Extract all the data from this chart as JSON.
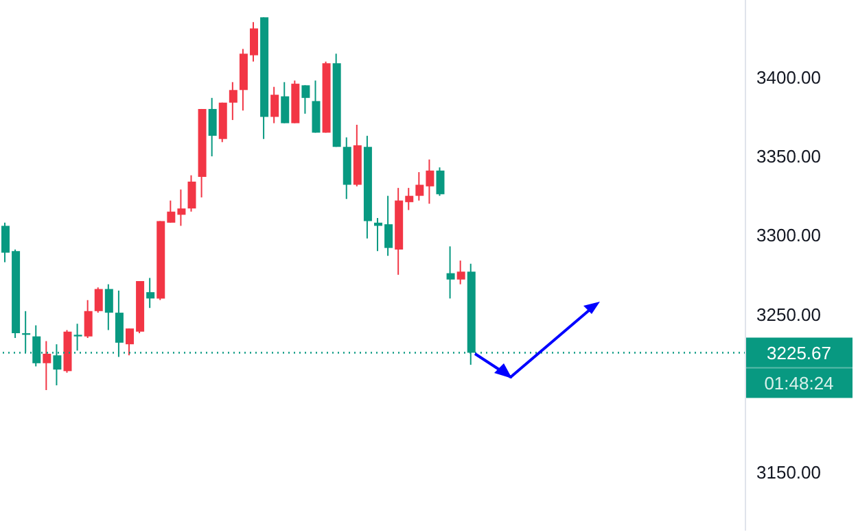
{
  "chart_data": {
    "type": "candlestick",
    "categories": [
      null,
      null,
      null,
      null,
      null,
      null,
      null,
      null,
      null,
      null,
      null,
      null,
      null,
      null,
      null,
      null,
      null,
      null,
      null,
      null,
      null,
      null,
      null,
      null,
      null,
      null,
      null,
      null,
      null,
      null,
      null,
      null,
      null,
      null,
      null,
      null,
      null,
      null,
      null,
      null,
      null,
      null,
      null,
      null,
      null,
      null,
      null,
      null,
      null,
      null,
      null,
      null,
      null,
      null,
      null,
      null,
      null,
      null,
      null,
      null,
      null,
      null,
      null,
      null,
      null,
      null,
      null,
      null,
      null,
      null,
      null,
      null
    ],
    "ohlc": [
      [
        3306,
        3308,
        3283,
        3289
      ],
      [
        3290,
        3291,
        3235,
        3238
      ],
      [
        3238,
        3252,
        3226,
        3237
      ],
      [
        3236,
        3243,
        3217,
        3219
      ],
      [
        3219,
        3233,
        3202,
        3225
      ],
      [
        3224,
        3231,
        3205,
        3215
      ],
      [
        3214,
        3240,
        3213,
        3239
      ],
      [
        3237,
        3244,
        3227,
        3236
      ],
      [
        3236,
        3259,
        3235,
        3252
      ],
      [
        3252,
        3267,
        3251,
        3266
      ],
      [
        3266,
        3269,
        3240,
        3251
      ],
      [
        3251,
        3265,
        3223,
        3232
      ],
      [
        3231,
        3241,
        3224,
        3241
      ],
      [
        3239,
        3271,
        3238,
        3271
      ],
      [
        3264,
        3273,
        3254,
        3260
      ],
      [
        3260,
        3309,
        3259,
        3309
      ],
      [
        3308,
        3322,
        3308,
        3315
      ],
      [
        3313,
        3329,
        3306,
        3317
      ],
      [
        3317,
        3338,
        3315,
        3334
      ],
      [
        3337,
        3380,
        3324,
        3380
      ],
      [
        3380,
        3387,
        3350,
        3363
      ],
      [
        3361,
        3384,
        3359,
        3384
      ],
      [
        3384,
        3397,
        3373,
        3392
      ],
      [
        3392,
        3418,
        3379,
        3415
      ],
      [
        3414,
        3435,
        3410,
        3431
      ],
      [
        3438,
        3438,
        3361,
        3375
      ],
      [
        3375,
        3394,
        3371,
        3389
      ],
      [
        3388,
        3397,
        3371,
        3371
      ],
      [
        3371,
        3398,
        3371,
        3396
      ],
      [
        3395,
        3395,
        3377,
        3387
      ],
      [
        3385,
        3398,
        3365,
        3365
      ],
      [
        3365,
        3410,
        3365,
        3409
      ],
      [
        3409,
        3415,
        3356,
        3356
      ],
      [
        3356,
        3362,
        3323,
        3332
      ],
      [
        3332,
        3370,
        3331,
        3357
      ],
      [
        3356,
        3363,
        3298,
        3309
      ],
      [
        3308,
        3311,
        3290,
        3306
      ],
      [
        3307,
        3325,
        3287,
        3292
      ],
      [
        3291,
        3330,
        3275,
        3322
      ],
      [
        3321,
        3330,
        3316,
        3325
      ],
      [
        3325,
        3340,
        3322,
        3332
      ],
      [
        3331,
        3348,
        3320,
        3341
      ],
      [
        3341,
        3343,
        3325,
        3326
      ],
      [
        3276,
        3293,
        3260,
        3272
      ],
      [
        3272,
        3284,
        3269,
        3277
      ],
      [
        3277,
        3282,
        3218,
        3225.67
      ],
      null,
      null,
      null,
      null,
      null,
      null,
      null,
      null,
      null,
      null,
      null,
      null,
      null,
      null,
      null,
      null,
      null,
      null,
      null,
      null,
      null,
      null,
      null,
      null,
      null,
      null
    ],
    "colors": [
      "#089981",
      "#089981",
      "#089981",
      "#089981",
      "#f23645",
      "#089981",
      "#f23645",
      "#089981",
      "#f23645",
      "#f23645",
      "#089981",
      "#089981",
      "#f23645",
      "#f23645",
      "#089981",
      "#f23645",
      "#f23645",
      "#f23645",
      "#f23645",
      "#f23645",
      "#089981",
      "#f23645",
      "#f23645",
      "#f23645",
      "#f23645",
      "#089981",
      "#f23645",
      "#089981",
      "#f23645",
      "#089981",
      "#089981",
      "#f23645",
      "#089981",
      "#089981",
      "#f23645",
      "#089981",
      "#089981",
      "#089981",
      "#f23645",
      "#f23645",
      "#f23645",
      "#f23645",
      "#089981",
      "#089981",
      "#f23645",
      "#089981",
      null,
      null,
      null,
      null,
      null,
      null,
      null,
      null,
      null,
      null,
      null,
      null,
      null,
      null,
      null,
      null,
      null,
      null,
      null,
      null,
      null,
      null,
      null,
      null,
      null,
      null
    ],
    "ylim": [
      3113,
      3449
    ],
    "yticks": [
      {
        "value": 3150,
        "label": "3150.00"
      },
      {
        "value": 3250,
        "label": "3250.00"
      },
      {
        "value": 3300,
        "label": "3300.00"
      },
      {
        "value": 3350,
        "label": "3350.00"
      },
      {
        "value": 3400,
        "label": "3400.00"
      }
    ],
    "tick_labels": "y",
    "ref_lines": [
      {
        "axis": "y",
        "value": 3225.67,
        "label": "3225.67",
        "color": "#089981",
        "line_style": "dotted"
      }
    ],
    "annotations": [
      "01:48:24"
    ]
  }
}
